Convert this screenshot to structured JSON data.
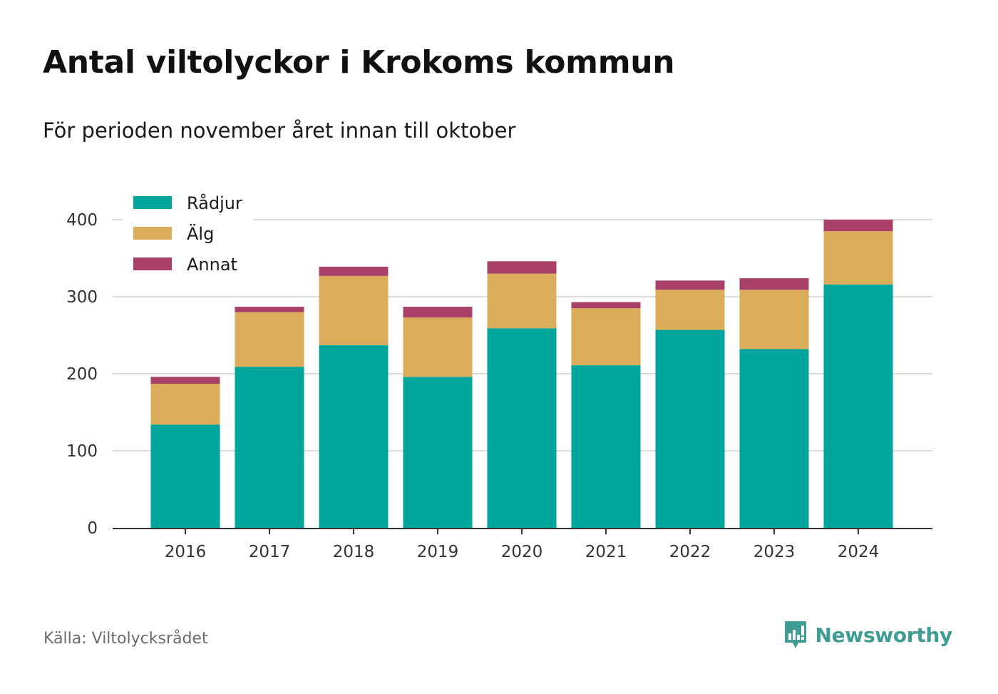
{
  "header": {
    "title": "Antal viltolyckor i Krokoms kommun",
    "subtitle": "För perioden november året innan till oktober"
  },
  "footer": {
    "source": "Källa: Viltolycksrådet",
    "brand": "Newsworthy",
    "brand_icon": "bar-chart-speech-bubble-icon",
    "brand_color": "#3e9c93"
  },
  "chart_data": {
    "type": "bar",
    "stacked": true,
    "title": "Antal viltolyckor i Krokoms kommun",
    "subtitle": "För perioden november året innan till oktober",
    "xlabel": "",
    "ylabel": "",
    "categories": [
      "2016",
      "2017",
      "2018",
      "2019",
      "2020",
      "2021",
      "2022",
      "2023",
      "2024"
    ],
    "series": [
      {
        "name": "Rådjur",
        "color": "#00a59b",
        "values": [
          134,
          209,
          237,
          196,
          259,
          211,
          257,
          232,
          316
        ]
      },
      {
        "name": "Älg",
        "color": "#dbac5a",
        "values": [
          53,
          71,
          90,
          77,
          71,
          74,
          52,
          77,
          69
        ]
      },
      {
        "name": "Annat",
        "color": "#a8406a",
        "values": [
          9,
          7,
          12,
          14,
          16,
          8,
          12,
          15,
          15
        ]
      }
    ],
    "ylim": [
      0,
      400
    ],
    "yticks": [
      0,
      100,
      200,
      300,
      400
    ],
    "grid": true,
    "legend": "top-left"
  }
}
